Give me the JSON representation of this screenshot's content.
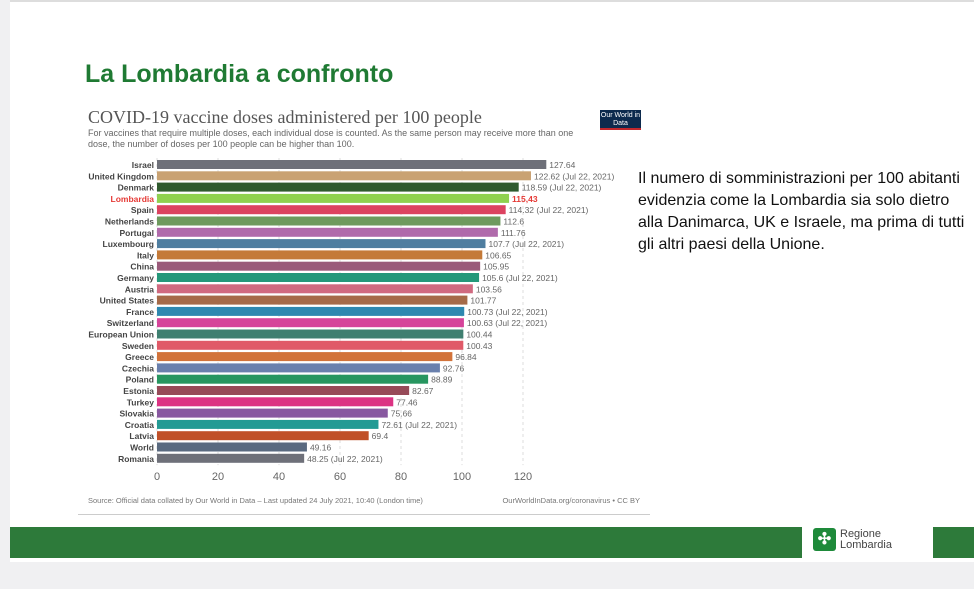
{
  "slide": {
    "title": "La Lombardia a confronto",
    "description": "Il numero di somministrazioni per 100 abitanti evidenzia come la Lombardia sia solo dietro alla Danimarca, UK e Israele, ma prima di tutti gli altri paesi della Unione.",
    "logo_line1": "Regione",
    "logo_line2": "Lombardia",
    "brand_color": "#2d7a3a"
  },
  "chart_data": {
    "type": "bar",
    "orientation": "horizontal",
    "title": "COVID-19 vaccine doses administered per 100 people",
    "subtitle": "For vaccines that require multiple doses, each individual dose is counted. As the same person may receive more than one dose, the number of doses per 100 people can be higher than 100.",
    "source": "Source: Official data collated by Our World in Data – Last updated 24 July 2021, 10:40 (London time)",
    "url": "OurWorldInData.org/coronavirus • CC BY",
    "logo": "Our World in Data",
    "xlim": [
      0,
      120
    ],
    "xticks": [
      0,
      20,
      40,
      60,
      80,
      100,
      120
    ],
    "grid": true,
    "bars": [
      {
        "label": "Israel",
        "value": 127.64,
        "text": "127.64",
        "color": "#6e7079"
      },
      {
        "label": "United Kingdom",
        "value": 122.62,
        "text": "122.62 (Jul 22, 2021)",
        "color": "#c9a273"
      },
      {
        "label": "Denmark",
        "value": 118.59,
        "text": "118.59 (Jul 22, 2021)",
        "color": "#2f5a2e"
      },
      {
        "label": "Lombardia",
        "value": 115.43,
        "text": "115,43",
        "color": "#8fd14f",
        "highlight": "#e53935"
      },
      {
        "label": "Spain",
        "value": 114.32,
        "text": "114.32 (Jul 22, 2021)",
        "color": "#dc4360"
      },
      {
        "label": "Netherlands",
        "value": 112.6,
        "text": "112.6",
        "color": "#6e9a5e"
      },
      {
        "label": "Portugal",
        "value": 111.76,
        "text": "111.76",
        "color": "#b06aab"
      },
      {
        "label": "Luxembourg",
        "value": 107.7,
        "text": "107.7 (Jul 22, 2021)",
        "color": "#4f7ea0"
      },
      {
        "label": "Italy",
        "value": 106.65,
        "text": "106.65",
        "color": "#c47a38"
      },
      {
        "label": "China",
        "value": 105.95,
        "text": "105.95",
        "color": "#9a5a7a"
      },
      {
        "label": "Germany",
        "value": 105.6,
        "text": "105.6 (Jul 22, 2021)",
        "color": "#24987a"
      },
      {
        "label": "Austria",
        "value": 103.56,
        "text": "103.56",
        "color": "#d06a80"
      },
      {
        "label": "United States",
        "value": 101.77,
        "text": "101.77",
        "color": "#a56a48"
      },
      {
        "label": "France",
        "value": 100.73,
        "text": "100.73 (Jul 22, 2021)",
        "color": "#2e88b0"
      },
      {
        "label": "Switzerland",
        "value": 100.63,
        "text": "100.63 (Jul 22, 2021)",
        "color": "#d6449a"
      },
      {
        "label": "European Union",
        "value": 100.44,
        "text": "100.44",
        "color": "#3f7f70"
      },
      {
        "label": "Sweden",
        "value": 100.43,
        "text": "100.43",
        "color": "#e05a68"
      },
      {
        "label": "Greece",
        "value": 96.84,
        "text": "96.84",
        "color": "#d2733a"
      },
      {
        "label": "Czechia",
        "value": 92.76,
        "text": "92.76",
        "color": "#6a80ad"
      },
      {
        "label": "Poland",
        "value": 88.89,
        "text": "88.89",
        "color": "#279660"
      },
      {
        "label": "Estonia",
        "value": 82.67,
        "text": "82.67",
        "color": "#974a58"
      },
      {
        "label": "Turkey",
        "value": 77.46,
        "text": "77.46",
        "color": "#dc3383"
      },
      {
        "label": "Slovakia",
        "value": 75.66,
        "text": "75.66",
        "color": "#8858a0"
      },
      {
        "label": "Croatia",
        "value": 72.61,
        "text": "72.61 (Jul 22, 2021)",
        "color": "#239a94"
      },
      {
        "label": "Latvia",
        "value": 69.4,
        "text": "69.4",
        "color": "#c05028"
      },
      {
        "label": "World",
        "value": 49.16,
        "text": "49.16",
        "color": "#5a6a80"
      },
      {
        "label": "Romania",
        "value": 48.25,
        "text": "48.25 (Jul 22, 2021)",
        "color": "#6e7079"
      }
    ]
  }
}
